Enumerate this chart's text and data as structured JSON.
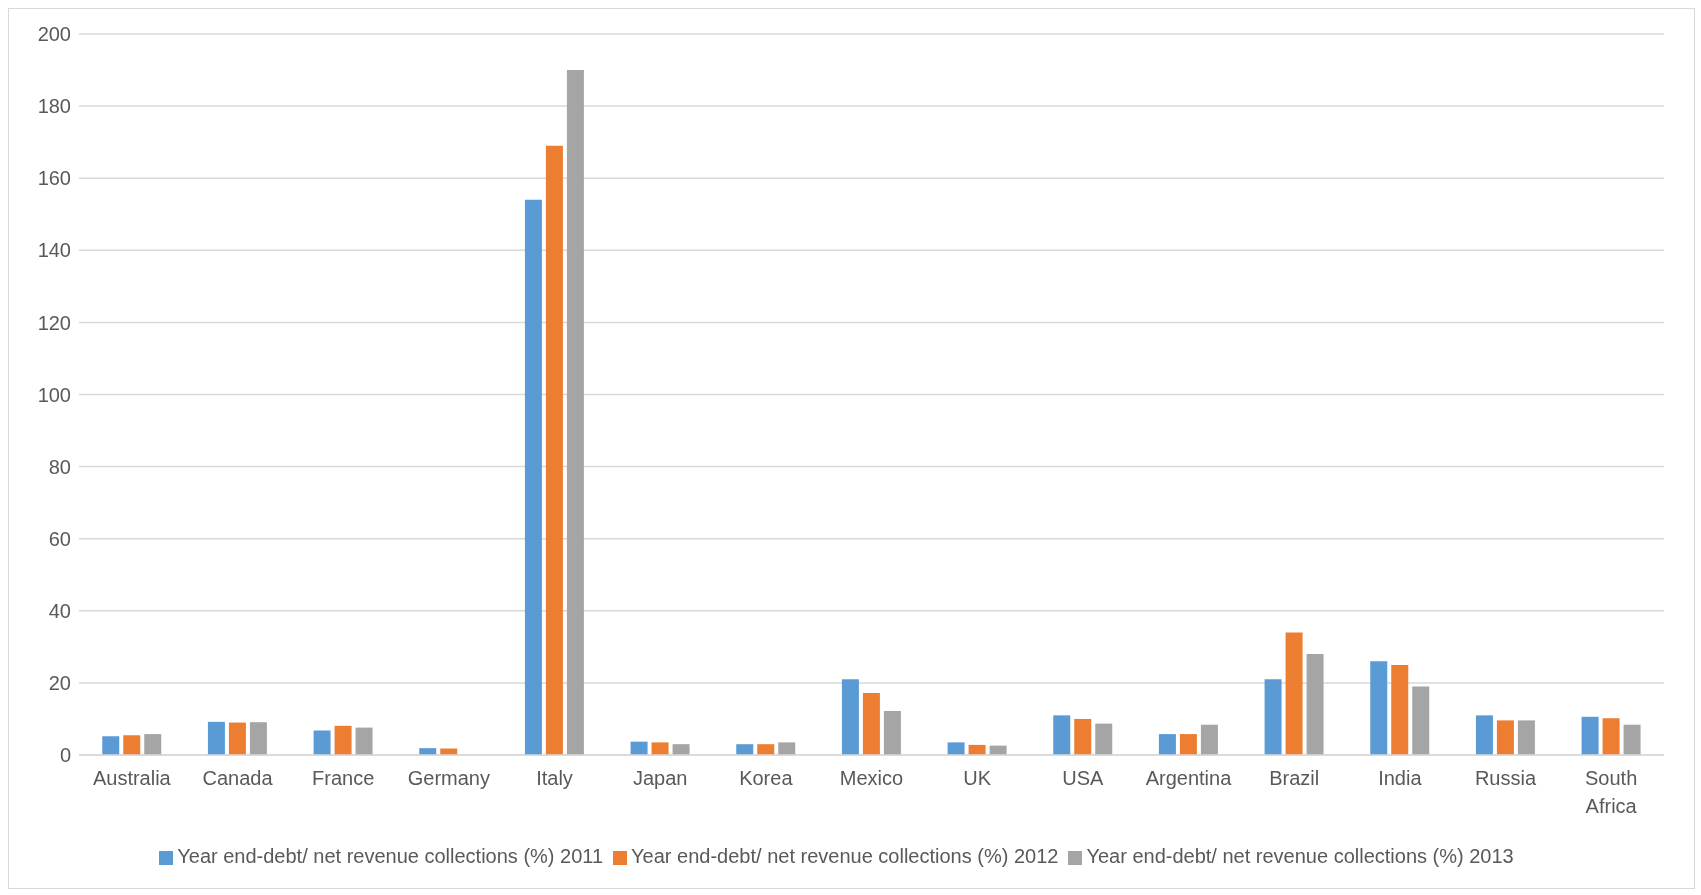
{
  "chart_data": {
    "type": "bar",
    "categories": [
      "Australia",
      "Canada",
      "France",
      "Germany",
      "Italy",
      "Japan",
      "Korea",
      "Mexico",
      "UK",
      "USA",
      "Argentina",
      "Brazil",
      "India",
      "Russia",
      "South Africa"
    ],
    "series": [
      {
        "name": "Year end-debt/ net revenue collections (%) 2011",
        "color": "#5b9bd5",
        "values": [
          5.2,
          9.2,
          6.8,
          1.9,
          154,
          3.7,
          3,
          21,
          3.5,
          11,
          5.8,
          21,
          26,
          11,
          10.6
        ]
      },
      {
        "name": "Year end-debt/ net revenue collections (%) 2012",
        "color": "#ed7d31",
        "values": [
          5.5,
          9,
          8.1,
          1.8,
          169,
          3.5,
          3,
          17.2,
          2.8,
          10,
          5.8,
          34,
          25,
          9.6,
          10.2
        ]
      },
      {
        "name": "Year end-debt/ net revenue collections (%) 2013",
        "color": "#a5a5a5",
        "values": [
          5.8,
          9.1,
          7.6,
          null,
          190,
          3,
          3.5,
          12.2,
          2.6,
          8.7,
          8.4,
          28,
          19,
          9.6,
          8.4
        ]
      }
    ],
    "ylim": [
      0,
      200
    ],
    "yticks": [
      0,
      20,
      40,
      60,
      80,
      100,
      120,
      140,
      160,
      180,
      200
    ],
    "grid": "y",
    "legend": "bottom"
  }
}
